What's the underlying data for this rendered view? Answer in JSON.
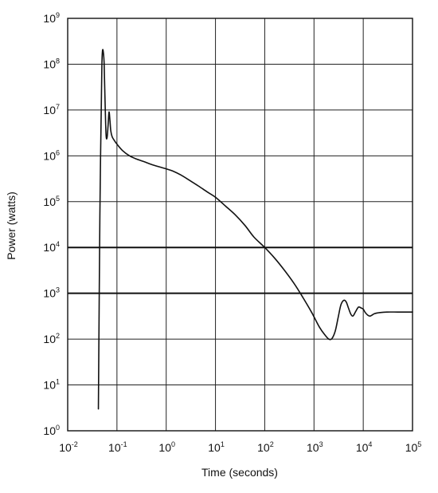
{
  "chart_data": {
    "type": "line",
    "title": "",
    "xlabel": "Time (seconds)",
    "ylabel": "Power (watts)",
    "xscale": "log",
    "yscale": "log",
    "xlim": [
      0.01,
      100000
    ],
    "ylim": [
      1,
      1000000000
    ],
    "grid": true,
    "legend": "none",
    "x_ticks": [
      {
        "base": "10",
        "exp": "-2",
        "value": 0.01
      },
      {
        "base": "10",
        "exp": "-1",
        "value": 0.1
      },
      {
        "base": "10",
        "exp": "0",
        "value": 1
      },
      {
        "base": "10",
        "exp": "1",
        "value": 10
      },
      {
        "base": "10",
        "exp": "2",
        "value": 100
      },
      {
        "base": "10",
        "exp": "3",
        "value": 1000
      },
      {
        "base": "10",
        "exp": "4",
        "value": 10000
      },
      {
        "base": "10",
        "exp": "5",
        "value": 100000
      }
    ],
    "y_ticks": [
      {
        "base": "10",
        "exp": "0",
        "value": 1
      },
      {
        "base": "10",
        "exp": "1",
        "value": 10
      },
      {
        "base": "10",
        "exp": "2",
        "value": 100
      },
      {
        "base": "10",
        "exp": "3",
        "value": 1000
      },
      {
        "base": "10",
        "exp": "4",
        "value": 10000
      },
      {
        "base": "10",
        "exp": "5",
        "value": 100000
      },
      {
        "base": "10",
        "exp": "6",
        "value": 1000000
      },
      {
        "base": "10",
        "exp": "7",
        "value": 10000000
      },
      {
        "base": "10",
        "exp": "8",
        "value": 100000000
      },
      {
        "base": "10",
        "exp": "9",
        "value": 1000000000
      }
    ],
    "series": [
      {
        "color": "#111111",
        "x": [
          0.042,
          0.0435,
          0.045,
          0.0465,
          0.048,
          0.0495,
          0.051,
          0.053,
          0.055,
          0.057,
          0.06,
          0.063,
          0.066,
          0.069,
          0.072,
          0.075,
          0.08,
          0.09,
          0.1,
          0.13,
          0.18,
          0.25,
          0.35,
          0.5,
          0.7,
          1.0,
          1.4,
          2.0,
          3.0,
          4.5,
          7.0,
          10,
          16,
          25,
          40,
          60,
          100,
          160,
          250,
          400,
          600,
          900,
          1300,
          1700,
          2000,
          2300,
          2700,
          3100,
          3500,
          4000,
          4500,
          5000,
          5600,
          6200,
          7000,
          8000,
          9000,
          10000,
          11000,
          12500,
          14000,
          17000,
          22000,
          30000,
          50000,
          80000,
          100000
        ],
        "y": [
          3,
          500,
          50000,
          1000000,
          10000000,
          100000000,
          200000000,
          180000000,
          100000000,
          20000000,
          3000000,
          2500000,
          4500000,
          9000000,
          6000000,
          3500000,
          2600000,
          2100000,
          1800000,
          1300000,
          1000000,
          850000,
          750000,
          650000,
          580000,
          520000,
          460000,
          380000,
          290000,
          220000,
          160000,
          125000,
          80000,
          52000,
          30000,
          17000,
          10000,
          5800,
          3200,
          1600,
          800,
          380,
          180,
          120,
          100,
          102,
          150,
          300,
          550,
          700,
          650,
          480,
          350,
          320,
          400,
          500,
          480,
          450,
          380,
          330,
          320,
          360,
          380,
          390,
          390,
          390,
          390
        ]
      }
    ]
  }
}
